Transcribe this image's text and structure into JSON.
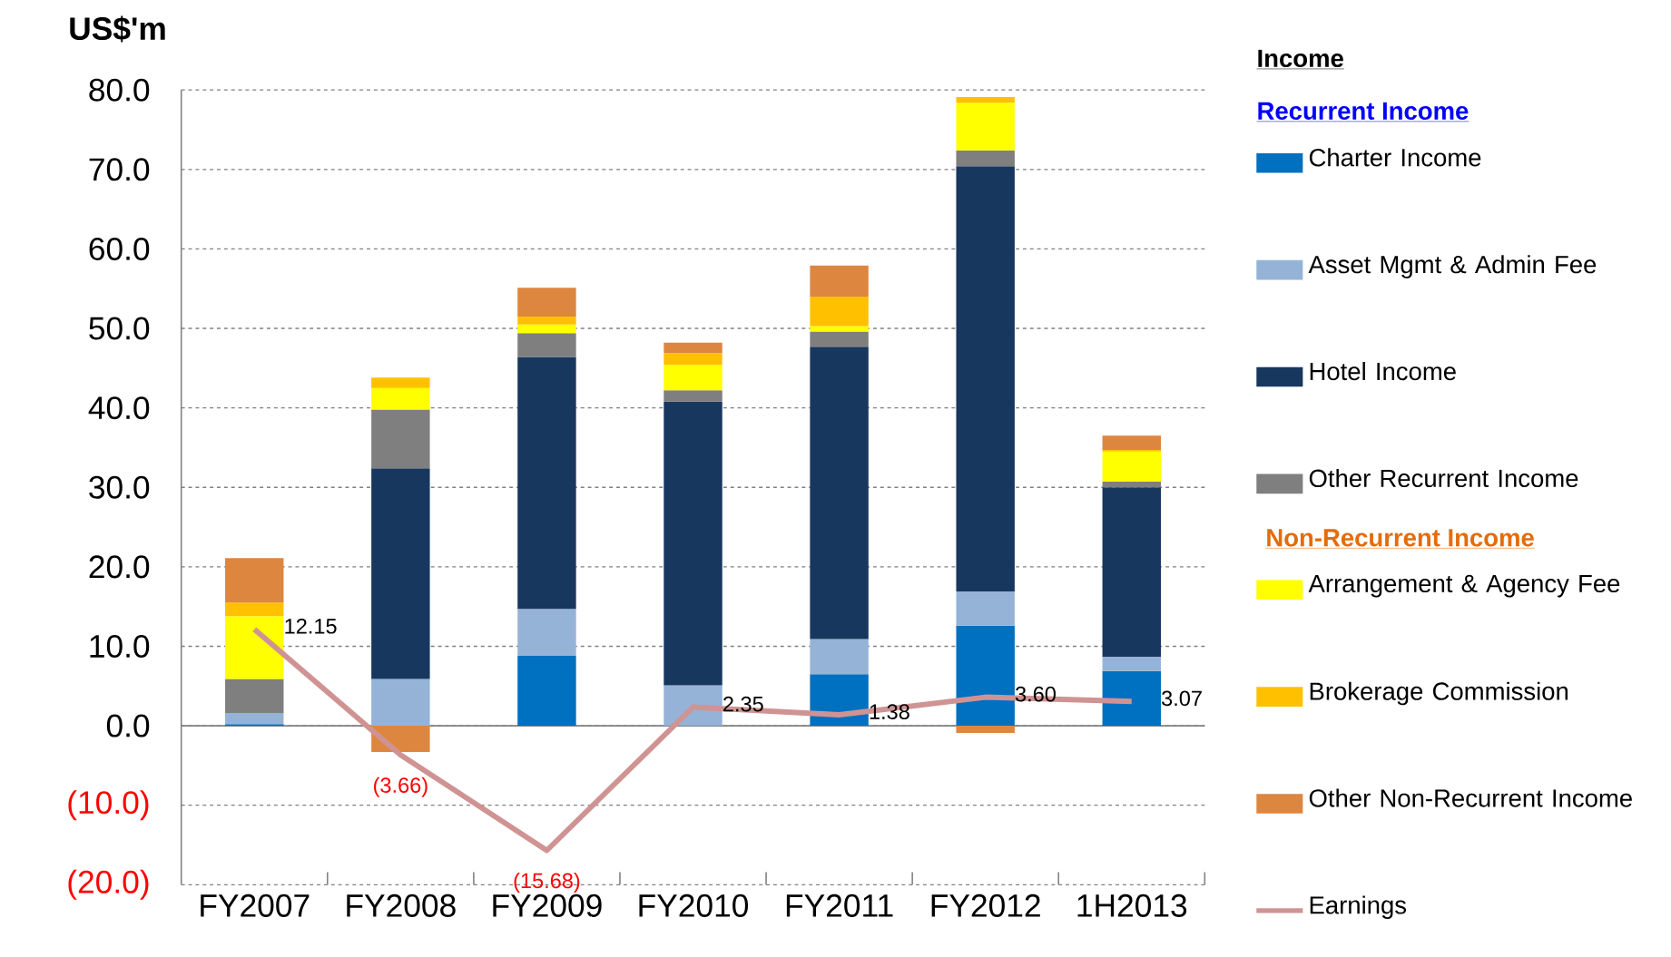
{
  "chart_data": {
    "type": "bar",
    "stacked": true,
    "ylabel": "US$'m",
    "legend_title": "Income",
    "annotations": [
      "Recurrent Income",
      "Non-Recurrent Income"
    ],
    "categories": [
      "FY2007",
      "FY2008",
      "FY2009",
      "FY2010",
      "FY2011",
      "FY2012",
      "1H2013"
    ],
    "ylim": [
      -20,
      80
    ],
    "yticks": [
      {
        "value": -20,
        "label": "(20.0)"
      },
      {
        "value": -10,
        "label": "(10.0)"
      },
      {
        "value": 0,
        "label": "0.0"
      },
      {
        "value": 10,
        "label": "10.0"
      },
      {
        "value": 20,
        "label": "20.0"
      },
      {
        "value": 30,
        "label": "30.0"
      },
      {
        "value": 40,
        "label": "40.0"
      },
      {
        "value": 50,
        "label": "50.0"
      },
      {
        "value": 60,
        "label": "60.0"
      },
      {
        "value": 70,
        "label": "70.0"
      },
      {
        "value": 80,
        "label": "80.0"
      }
    ],
    "grid": "y",
    "legend": "right",
    "series": [
      {
        "name": "Charter Income",
        "color": "#0070c0",
        "values": [
          0.2,
          0,
          8.8,
          0,
          6.5,
          12.6,
          6.9
        ]
      },
      {
        "name": "Asset Mgmt & Admin Fee",
        "color": "#95b3d7",
        "values": [
          1.4,
          5.9,
          5.9,
          5.1,
          4.4,
          4.3,
          1.8
        ]
      },
      {
        "name": "Hotel Income",
        "color": "#17375e",
        "values": [
          0,
          26.5,
          31.7,
          35.7,
          36.8,
          53.5,
          21.3
        ]
      },
      {
        "name": "Other Recurrent Income",
        "color": "#7f7f7f",
        "values": [
          4.3,
          7.4,
          3.0,
          1.4,
          1.9,
          2.0,
          0.7
        ]
      },
      {
        "name": "Arrangement & Agency Fee",
        "color": "#ffff00",
        "values": [
          7.9,
          2.7,
          1.1,
          3.2,
          0.7,
          6.0,
          3.8
        ]
      },
      {
        "name": "Brokerage Commission",
        "color": "#ffc000",
        "values": [
          1.7,
          1.3,
          1.0,
          1.5,
          3.7,
          0.7,
          0.2
        ]
      },
      {
        "name": "Other Non-Recurrent Income",
        "color": "#dd8640",
        "values": [
          5.6,
          -3.3,
          3.6,
          1.3,
          3.9,
          -0.9,
          1.8
        ]
      },
      {
        "name": "Earnings",
        "type": "line",
        "color": "#d09393",
        "values": [
          12.15,
          -3.66,
          -15.68,
          2.35,
          1.38,
          3.6,
          3.07
        ],
        "value_labels": [
          "12.15",
          "(3.66)",
          "(15.68)",
          "2.35",
          "1.38",
          "3.60",
          "3.07"
        ]
      }
    ]
  }
}
